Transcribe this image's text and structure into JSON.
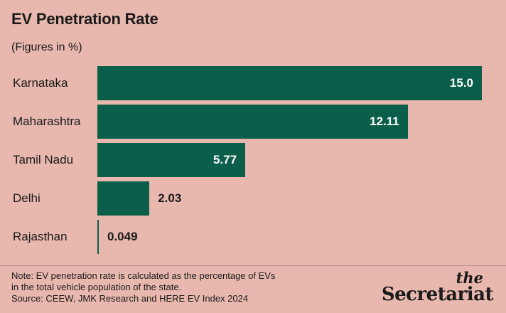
{
  "chart_data": {
    "type": "bar",
    "orientation": "horizontal",
    "title": "EV Penetration Rate",
    "subtitle": "(Figures in %)",
    "categories": [
      "Karnataka",
      "Maharashtra",
      "Tamil Nadu",
      "Delhi",
      "Rajasthan"
    ],
    "values": [
      15.0,
      12.11,
      5.77,
      2.03,
      0.049
    ],
    "value_labels": [
      "15.0",
      "12.11",
      "5.77",
      "2.03",
      "0.049"
    ],
    "xlim": [
      0,
      15
    ],
    "grid": false,
    "legend": "none",
    "colors": {
      "bar": "#0b5e4a",
      "background": "#e8b8ae",
      "value_inside": "#ffffff",
      "value_outside": "#1a1a1a"
    }
  },
  "footer": {
    "note_lines": [
      "Note: EV penetration rate is calculated as the percentage of EVs",
      "in the total vehicle population of the state.",
      "Source: CEEW, JMK Research and HERE EV Index 2024"
    ]
  },
  "logo": {
    "line1": "the",
    "line2": "Secretariat"
  }
}
